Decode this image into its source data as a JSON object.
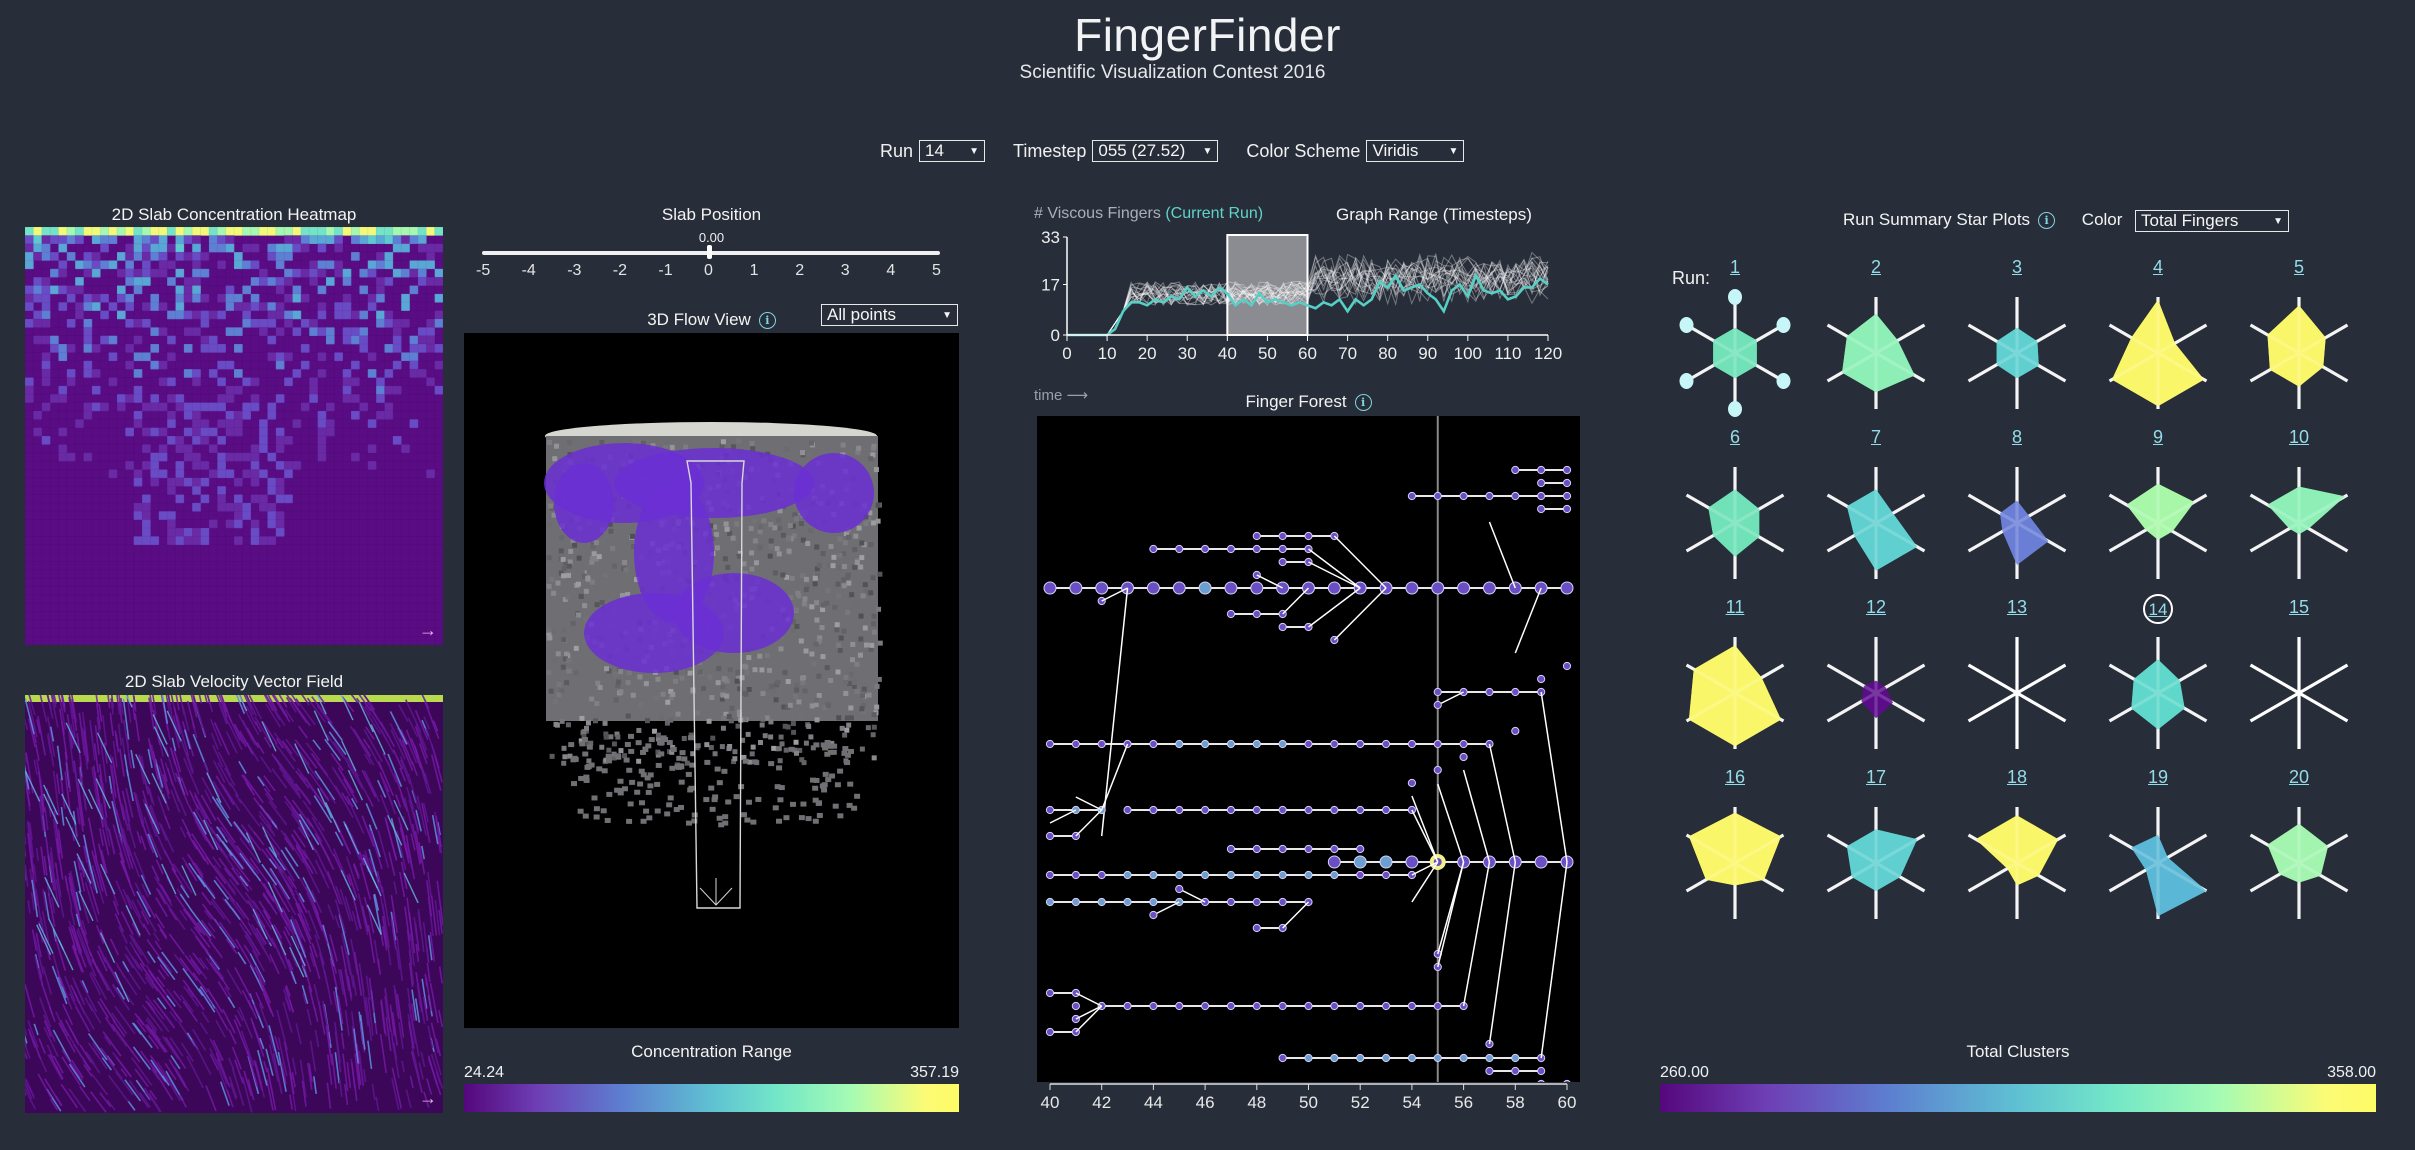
{
  "header": {
    "title": "FingerFinder",
    "subtitle": "Scientific Visualization Contest 2016"
  },
  "controls": {
    "run_label": "Run",
    "run_value": "14",
    "timestep_label": "Timestep",
    "timestep_value": "055 (27.52)",
    "color_scheme_label": "Color Scheme",
    "color_scheme_value": "Viridis"
  },
  "heatmap": {
    "title": "2D Slab Concentration Heatmap",
    "expand_icon": "→"
  },
  "vector_field": {
    "title": "2D Slab Velocity Vector Field",
    "expand_icon": "→"
  },
  "slab": {
    "title": "Slab Position",
    "value": "0.00",
    "ticks": [
      "-5",
      "-4",
      "-3",
      "-2",
      "-1",
      "0",
      "1",
      "2",
      "3",
      "4",
      "5"
    ]
  },
  "flow_view": {
    "title": "3D Flow View",
    "info_icon": "i",
    "filter_value": "All points"
  },
  "concentration": {
    "title": "Concentration Range",
    "min": "24.24",
    "max": "357.19"
  },
  "fingers_chart": {
    "title_prefix": "# Viscous Fingers",
    "title_current": "(Current Run)",
    "range_title": "Graph Range (Timesteps)",
    "y_ticks": [
      "33",
      "17",
      "0"
    ],
    "x_ticks": [
      "0",
      "10",
      "20",
      "30",
      "40",
      "50",
      "60",
      "70",
      "80",
      "90",
      "100",
      "110",
      "120"
    ],
    "brush": {
      "from": 40,
      "to": 60
    },
    "time_label": "time ⟶"
  },
  "forest": {
    "title": "Finger Forest",
    "info_icon": "i",
    "x_ticks": [
      "40",
      "42",
      "44",
      "46",
      "48",
      "50",
      "52",
      "54",
      "56",
      "58",
      "60"
    ],
    "current_timestep": 55
  },
  "star_plots": {
    "title": "Run Summary Star Plots",
    "info_icon": "i",
    "color_label": "Color",
    "color_value": "Total Fingers",
    "run_label": "Run:",
    "selected_run": "14",
    "runs": [
      {
        "id": "1",
        "color": "#72e2b8",
        "r": [
          0.45,
          0.45,
          0.45,
          0.45,
          0.45,
          0.45
        ],
        "handles": true
      },
      {
        "id": "2",
        "color": "#8ef0b6",
        "r": [
          0.7,
          0.45,
          0.8,
          0.7,
          0.7,
          0.6
        ]
      },
      {
        "id": "3",
        "color": "#5fd0cf",
        "r": [
          0.45,
          0.42,
          0.45,
          0.45,
          0.42,
          0.42
        ]
      },
      {
        "id": "4",
        "color": "#fbf76a",
        "r": [
          0.95,
          0.35,
          0.95,
          0.95,
          0.95,
          0.55
        ]
      },
      {
        "id": "5",
        "color": "#fbf76a",
        "r": [
          0.85,
          0.55,
          0.5,
          0.6,
          0.6,
          0.65
        ]
      },
      {
        "id": "6",
        "color": "#72e2b8",
        "r": [
          0.6,
          0.5,
          0.5,
          0.6,
          0.45,
          0.55
        ]
      },
      {
        "id": "7",
        "color": "#5fd0cf",
        "r": [
          0.6,
          0.35,
          0.85,
          0.85,
          0.45,
          0.6
        ]
      },
      {
        "id": "8",
        "color": "#6a7fd6",
        "r": [
          0.4,
          0.25,
          0.65,
          0.75,
          0.3,
          0.35
        ]
      },
      {
        "id": "9",
        "color": "#a8f8a8",
        "r": [
          0.7,
          0.75,
          0.3,
          0.3,
          0.25,
          0.65
        ]
      },
      {
        "id": "10",
        "color": "#8ef0b6",
        "r": [
          0.65,
          0.95,
          0.2,
          0.2,
          0.2,
          0.65
        ]
      },
      {
        "id": "11",
        "color": "#fbf76a",
        "r": [
          0.85,
          0.55,
          0.95,
          0.95,
          0.95,
          0.85
        ]
      },
      {
        "id": "12",
        "color": "#5c0e8a",
        "r": [
          0.22,
          0.2,
          0.35,
          0.45,
          0.3,
          0.25
        ]
      },
      {
        "id": "13",
        "color": "#ffffff",
        "r": [
          0,
          0,
          0,
          0,
          0,
          0
        ]
      },
      {
        "id": "14",
        "color": "#5fd8cb",
        "r": [
          0.6,
          0.45,
          0.55,
          0.65,
          0.55,
          0.5
        ]
      },
      {
        "id": "15",
        "color": "#ffffff",
        "r": [
          0,
          0,
          0,
          0,
          0,
          0
        ]
      },
      {
        "id": "16",
        "color": "#fbf76a",
        "r": [
          0.9,
          0.95,
          0.6,
          0.4,
          0.6,
          0.95
        ]
      },
      {
        "id": "17",
        "color": "#5fd0cf",
        "r": [
          0.6,
          0.85,
          0.5,
          0.5,
          0.5,
          0.6
        ]
      },
      {
        "id": "18",
        "color": "#fbf76a",
        "r": [
          0.85,
          0.85,
          0.45,
          0.4,
          0.2,
          0.85
        ]
      },
      {
        "id": "19",
        "color": "#5ab8d6",
        "r": [
          0.5,
          0.2,
          1.0,
          0.95,
          0.25,
          0.55
        ]
      },
      {
        "id": "20",
        "color": "#a4f5b0",
        "r": [
          0.7,
          0.6,
          0.45,
          0.35,
          0.4,
          0.65
        ]
      }
    ]
  },
  "clusters": {
    "title": "Total Clusters",
    "min": "260.00",
    "max": "358.00"
  },
  "chart_data": {
    "type": "line",
    "title": "# Viscous Fingers (Current Run)",
    "xlabel": "Graph Range (Timesteps)",
    "ylabel": "# Viscous Fingers",
    "ylim": [
      0,
      33
    ],
    "xlim": [
      0,
      120
    ],
    "y_ticks": [
      0,
      17,
      33
    ],
    "x_ticks": [
      0,
      10,
      20,
      30,
      40,
      50,
      60,
      70,
      80,
      90,
      100,
      110,
      120
    ],
    "series": [
      {
        "name": "Current Run (14)",
        "color": "#56cfc5",
        "x": [
          0,
          5,
          10,
          12,
          14,
          16,
          18,
          20,
          22,
          24,
          26,
          28,
          30,
          32,
          34,
          36,
          38,
          40,
          42,
          44,
          46,
          48,
          50,
          52,
          54,
          56,
          58,
          60,
          62,
          64,
          66,
          68,
          70,
          72,
          74,
          76,
          78,
          80,
          82,
          84,
          86,
          88,
          90,
          92,
          94,
          96,
          98,
          100,
          102,
          104,
          106,
          108,
          110,
          112,
          114,
          116,
          118,
          120
        ],
        "values": [
          0,
          0,
          0,
          2,
          8,
          11,
          11,
          10,
          12,
          11,
          13,
          12,
          16,
          13,
          15,
          13,
          16,
          14,
          10,
          12,
          10,
          14,
          11,
          12,
          11,
          10,
          11,
          10,
          9,
          11,
          10,
          12,
          8,
          12,
          10,
          12,
          18,
          16,
          20,
          15,
          16,
          17,
          14,
          12,
          8,
          15,
          17,
          13,
          20,
          15,
          14,
          15,
          12,
          13,
          16,
          16,
          19,
          17
        ]
      }
    ],
    "other_runs_note": "19 other runs drawn as faint white lines in range ~5–30",
    "brush_range": [
      40,
      60
    ]
  }
}
